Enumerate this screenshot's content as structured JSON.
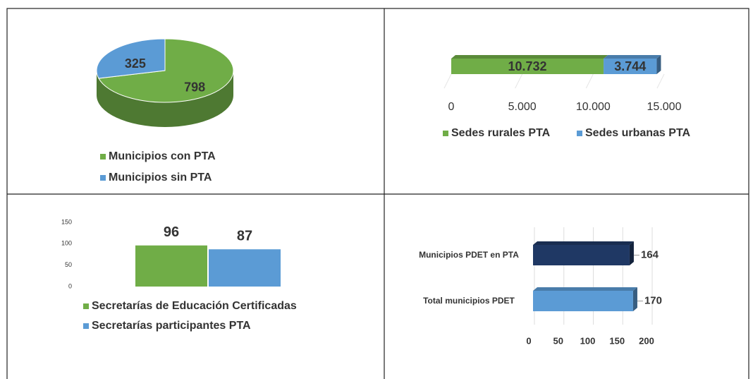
{
  "chart_data": [
    {
      "type": "pie",
      "categories": [
        "Municipios con PTA",
        "Municipios sin PTA"
      ],
      "values": [
        798,
        325
      ],
      "colors": [
        "#70ad47",
        "#5b9bd5"
      ],
      "legend": "bottom"
    },
    {
      "type": "stacked-hbar",
      "series": [
        {
          "name": "Sedes rurales PTA",
          "color": "#70ad47",
          "values": [
            10732
          ],
          "value_labels": [
            "10.732"
          ]
        },
        {
          "name": "Sedes urbanas PTA",
          "color": "#5b9bd5",
          "values": [
            3744
          ],
          "value_labels": [
            "3.744"
          ]
        }
      ],
      "xlim": [
        0,
        15000
      ],
      "xticks": [
        0,
        {
          "value": 5000,
          "label": "5.000"
        },
        {
          "value": 10000,
          "label": "10.000"
        },
        {
          "value": 15000,
          "label": "15.000"
        }
      ],
      "legend": "bottom"
    },
    {
      "type": "bar",
      "series": [
        {
          "name": "Secretarías de Educación Certificadas",
          "color": "#70ad47",
          "values": [
            96
          ]
        },
        {
          "name": "Secretarías participantes PTA",
          "color": "#5b9bd5",
          "values": [
            87
          ]
        }
      ],
      "ylim": [
        0,
        150
      ],
      "yticks": [
        0,
        50,
        100,
        150
      ],
      "legend": "bottom"
    },
    {
      "type": "hbar",
      "categories": [
        "Municipios PDET en PTA",
        "Total municipios PDET"
      ],
      "values": [
        164,
        170
      ],
      "colors": [
        "#1f3864",
        "#5b9bd5"
      ],
      "xlim": [
        0,
        200
      ],
      "xticks": [
        0,
        50,
        100,
        150,
        200
      ],
      "grid": true
    }
  ]
}
